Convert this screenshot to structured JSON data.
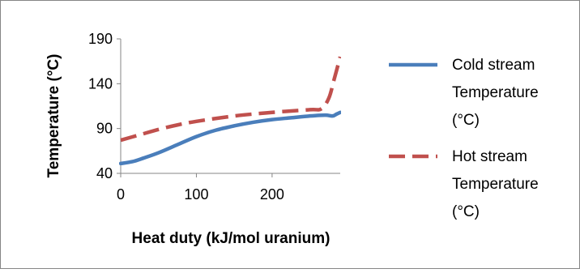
{
  "chart_data": {
    "type": "line",
    "title": "",
    "xlabel": "Heat duty (kJ/mol uranium)",
    "ylabel": "Temperature (°C)",
    "xlim": [
      0,
      290
    ],
    "ylim": [
      40,
      190
    ],
    "x_ticks": [
      0,
      100,
      200
    ],
    "y_ticks": [
      40,
      90,
      140,
      190
    ],
    "grid": {
      "x": false,
      "y": false
    },
    "legend_position": "right",
    "series": [
      {
        "name": "Cold stream Temperature (°C)",
        "legend_lines": [
          "Cold stream",
          "Temperature",
          "(°C)"
        ],
        "color": "#4a7ebb",
        "dash": "solid",
        "x": [
          0,
          15,
          30,
          50,
          75,
          100,
          125,
          150,
          175,
          200,
          225,
          250,
          270,
          280,
          285,
          290
        ],
        "y": [
          51,
          53,
          57,
          63,
          72,
          81,
          88,
          93,
          97,
          100,
          102,
          104,
          105,
          104,
          106,
          108
        ]
      },
      {
        "name": "Hot stream Temperature (°C)",
        "legend_lines": [
          "Hot stream",
          "Temperature",
          "(°C)"
        ],
        "color": "#c0504d",
        "dash": "dashed",
        "x": [
          0,
          25,
          50,
          75,
          100,
          150,
          200,
          250,
          265,
          275,
          282,
          290
        ],
        "y": [
          77,
          83,
          89,
          94,
          98,
          104,
          108,
          111,
          112,
          124,
          145,
          170
        ]
      }
    ]
  }
}
